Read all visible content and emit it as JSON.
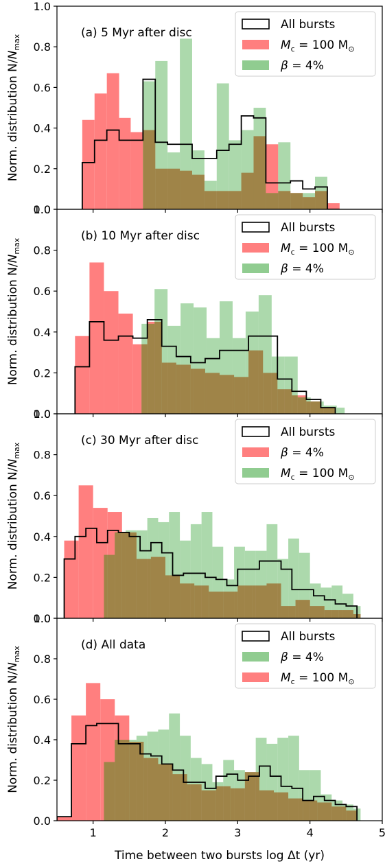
{
  "figure": {
    "ylabel_main": "Norm. distribution N/",
    "ylabel_italic": "N",
    "ylabel_sub": "max",
    "xlabel": "Time between two bursts log Δt (yr)"
  },
  "chart_data": [
    {
      "type": "histogram",
      "title": "(a)  5 Myr after disc",
      "xlim": [
        0.5,
        5.0
      ],
      "ylim": [
        0.0,
        1.0
      ],
      "yticks": [
        "0.0",
        "0.2",
        "0.4",
        "0.6",
        "0.8",
        "1.0"
      ],
      "legend": {
        "placement": "top-right",
        "entries": [
          {
            "kind": "step",
            "text": "All bursts"
          },
          {
            "kind": "red",
            "text_main": "M",
            "text_sub": "c",
            "text_rest": " = 100 M",
            "text_sym": "⊙"
          },
          {
            "kind": "green",
            "text_main": "β",
            "text_rest": " = 4%"
          }
        ]
      },
      "series": [
        {
          "kind": "red",
          "edges": [
            0.85,
            1.02,
            1.19,
            1.36,
            1.52,
            1.69,
            1.86,
            2.03,
            2.2,
            2.37,
            2.54,
            2.71,
            2.88,
            3.05,
            3.22,
            3.39,
            3.56,
            3.73,
            3.9,
            4.07,
            4.24,
            4.41
          ],
          "values": [
            0.44,
            0.57,
            0.67,
            0.45,
            0.38,
            0.39,
            0.2,
            0.2,
            0.19,
            0.17,
            0.09,
            0.09,
            0.09,
            0.18,
            0.36,
            0.32,
            0.09,
            0.08,
            0.06,
            0.09,
            0.03
          ]
        },
        {
          "kind": "green",
          "edges": [
            1.69,
            1.86,
            2.03,
            2.2,
            2.37,
            2.54,
            2.71,
            2.88,
            3.05,
            3.22,
            3.39,
            3.56,
            3.73,
            3.9,
            4.07,
            4.24
          ],
          "values": [
            0.63,
            0.73,
            0.28,
            0.84,
            0.29,
            0.14,
            0.62,
            0.34,
            0.39,
            0.5,
            0.08,
            0.33,
            0.08,
            0.08,
            0.16
          ]
        },
        {
          "kind": "step",
          "edges": [
            0.85,
            1.02,
            1.19,
            1.36,
            1.52,
            1.69,
            1.86,
            2.03,
            2.2,
            2.37,
            2.54,
            2.71,
            2.88,
            3.05,
            3.22,
            3.39,
            3.56,
            3.73,
            3.9,
            4.07,
            4.24,
            4.41
          ],
          "values": [
            0.23,
            0.34,
            0.39,
            0.34,
            0.34,
            0.64,
            0.33,
            0.32,
            0.32,
            0.25,
            0.25,
            0.29,
            0.32,
            0.46,
            0.45,
            0.13,
            0.13,
            0.14,
            0.1,
            0.11,
            0.0
          ]
        }
      ]
    },
    {
      "type": "histogram",
      "title": "(b) 10 Myr after disc",
      "xlim": [
        0.5,
        5.0
      ],
      "ylim": [
        0.0,
        1.0
      ],
      "yticks": [
        "0.0",
        "0.2",
        "0.4",
        "0.6",
        "0.8",
        "1.0"
      ],
      "legend": {
        "placement": "top-right",
        "entries": [
          {
            "kind": "step",
            "text": "All bursts"
          },
          {
            "kind": "red",
            "text_main": "M",
            "text_sub": "c",
            "text_rest": " = 100 M",
            "text_sym": "⊙"
          },
          {
            "kind": "green",
            "text_main": "β",
            "text_rest": " = 4%"
          }
        ]
      },
      "series": [
        {
          "kind": "red",
          "edges": [
            0.75,
            0.95,
            1.15,
            1.35,
            1.55,
            1.75,
            1.95,
            2.15,
            2.35,
            2.55,
            2.75,
            2.95,
            3.15,
            3.35,
            3.55,
            3.75,
            3.95,
            4.15,
            4.35
          ],
          "values": [
            0.38,
            0.74,
            0.6,
            0.49,
            0.34,
            0.45,
            0.25,
            0.24,
            0.22,
            0.2,
            0.19,
            0.18,
            0.31,
            0.2,
            0.12,
            0.09,
            0.06,
            0.03
          ]
        },
        {
          "kind": "green",
          "edges": [
            1.67,
            1.85,
            2.03,
            2.21,
            2.39,
            2.57,
            2.75,
            2.93,
            3.11,
            3.29,
            3.47,
            3.65,
            3.83,
            4.01,
            4.19,
            4.37,
            4.48
          ],
          "values": [
            0.44,
            0.61,
            0.43,
            0.54,
            0.52,
            0.37,
            0.55,
            0.37,
            0.5,
            0.58,
            0.28,
            0.28,
            0.08,
            0.06,
            0.04,
            0.03
          ]
        },
        {
          "kind": "step",
          "edges": [
            0.75,
            0.95,
            1.15,
            1.35,
            1.55,
            1.75,
            1.95,
            2.15,
            2.35,
            2.55,
            2.75,
            2.95,
            3.15,
            3.35,
            3.55,
            3.75,
            3.95,
            4.15,
            4.35
          ],
          "values": [
            0.23,
            0.45,
            0.36,
            0.38,
            0.37,
            0.46,
            0.33,
            0.28,
            0.25,
            0.27,
            0.31,
            0.31,
            0.38,
            0.38,
            0.17,
            0.11,
            0.07,
            0.03
          ]
        }
      ]
    },
    {
      "type": "histogram",
      "title": "(c) 30 Myr after disc",
      "xlim": [
        0.5,
        5.0
      ],
      "ylim": [
        0.0,
        1.0
      ],
      "yticks": [
        "0.0",
        "0.2",
        "0.4",
        "0.6",
        "0.8",
        "1.0"
      ],
      "legend": {
        "placement": "top-right",
        "entries": [
          {
            "kind": "step",
            "text": "All bursts"
          },
          {
            "kind": "red",
            "text_main": "β",
            "text_rest": " = 4%"
          },
          {
            "kind": "green",
            "text_main": "M",
            "text_sub": "c",
            "text_rest": " = 100 M",
            "text_sym": "⊙"
          }
        ]
      },
      "series": [
        {
          "kind": "red",
          "edges": [
            0.6,
            0.8,
            1.0,
            1.2,
            1.4,
            1.6,
            1.8,
            2.0,
            2.2,
            2.4,
            2.6,
            2.8,
            3.0,
            3.2,
            3.4,
            3.6,
            3.8,
            4.0,
            4.2,
            4.4,
            4.6,
            4.7
          ],
          "values": [
            0.38,
            0.65,
            0.54,
            0.52,
            0.42,
            0.29,
            0.3,
            0.21,
            0.17,
            0.16,
            0.13,
            0.13,
            0.16,
            0.16,
            0.17,
            0.06,
            0.09,
            0.06,
            0.04,
            0.04,
            0.02
          ]
        },
        {
          "kind": "green",
          "edges": [
            1.15,
            1.3,
            1.45,
            1.6,
            1.75,
            1.9,
            2.05,
            2.2,
            2.35,
            2.5,
            2.65,
            2.8,
            2.95,
            3.1,
            3.25,
            3.4,
            3.55,
            3.7,
            3.85,
            4.0,
            4.15,
            4.3,
            4.45,
            4.6,
            4.7
          ],
          "values": [
            0.31,
            0.42,
            0.43,
            0.43,
            0.49,
            0.47,
            0.52,
            0.38,
            0.46,
            0.52,
            0.35,
            0.19,
            0.35,
            0.33,
            0.33,
            0.46,
            0.29,
            0.39,
            0.32,
            0.17,
            0.15,
            0.16,
            0.12,
            0.06
          ]
        },
        {
          "kind": "step",
          "edges": [
            0.6,
            0.75,
            0.9,
            1.05,
            1.2,
            1.35,
            1.5,
            1.65,
            1.8,
            1.95,
            2.1,
            2.25,
            2.4,
            2.55,
            2.7,
            2.85,
            3.0,
            3.15,
            3.3,
            3.45,
            3.6,
            3.75,
            3.9,
            4.05,
            4.2,
            4.35,
            4.5,
            4.65
          ],
          "values": [
            0.29,
            0.4,
            0.44,
            0.37,
            0.43,
            0.42,
            0.4,
            0.33,
            0.37,
            0.32,
            0.21,
            0.22,
            0.22,
            0.2,
            0.19,
            0.16,
            0.24,
            0.24,
            0.28,
            0.28,
            0.24,
            0.14,
            0.14,
            0.11,
            0.09,
            0.07,
            0.06
          ]
        }
      ]
    },
    {
      "type": "histogram",
      "title": "(d) All data",
      "xlim": [
        0.5,
        5.0
      ],
      "ylim": [
        0.0,
        1.0
      ],
      "xticks": [
        "1",
        "2",
        "3",
        "4",
        "5"
      ],
      "yticks": [
        "0.0",
        "0.2",
        "0.4",
        "0.6",
        "0.8",
        "1.0"
      ],
      "legend": {
        "placement": "top-right",
        "entries": [
          {
            "kind": "step",
            "text": "All bursts"
          },
          {
            "kind": "green",
            "text_main": "β",
            "text_rest": " = 4%"
          },
          {
            "kind": "red",
            "text_main": "M",
            "text_sub": "c",
            "text_rest": " = 100 M",
            "text_sym": "⊙"
          }
        ]
      },
      "series": [
        {
          "kind": "red",
          "edges": [
            0.5,
            0.7,
            0.9,
            1.1,
            1.3,
            1.5,
            1.7,
            1.9,
            2.1,
            2.3,
            2.5,
            2.7,
            2.9,
            3.1,
            3.3,
            3.5,
            3.7,
            3.9,
            4.1,
            4.3,
            4.5,
            4.65
          ],
          "values": [
            0.02,
            0.52,
            0.68,
            0.6,
            0.52,
            0.39,
            0.31,
            0.28,
            0.23,
            0.18,
            0.15,
            0.17,
            0.16,
            0.24,
            0.15,
            0.14,
            0.11,
            0.1,
            0.09,
            0.07,
            0.05
          ]
        },
        {
          "kind": "green",
          "edges": [
            1.15,
            1.3,
            1.45,
            1.6,
            1.75,
            1.9,
            2.05,
            2.2,
            2.35,
            2.5,
            2.65,
            2.8,
            2.95,
            3.1,
            3.25,
            3.4,
            3.55,
            3.7,
            3.85,
            4.0,
            4.15,
            4.3,
            4.45,
            4.6,
            4.7
          ],
          "values": [
            0.29,
            0.4,
            0.4,
            0.42,
            0.44,
            0.45,
            0.53,
            0.42,
            0.31,
            0.28,
            0.19,
            0.3,
            0.25,
            0.24,
            0.41,
            0.38,
            0.41,
            0.42,
            0.25,
            0.25,
            0.13,
            0.1,
            0.08,
            0.06
          ]
        },
        {
          "kind": "step",
          "edges": [
            0.5,
            0.7,
            0.9,
            1.05,
            1.2,
            1.35,
            1.5,
            1.65,
            1.8,
            1.95,
            2.1,
            2.25,
            2.4,
            2.55,
            2.7,
            2.85,
            3.0,
            3.15,
            3.3,
            3.45,
            3.6,
            3.75,
            3.9,
            4.05,
            4.2,
            4.35,
            4.5,
            4.65
          ],
          "values": [
            0.02,
            0.38,
            0.47,
            0.48,
            0.48,
            0.38,
            0.38,
            0.33,
            0.32,
            0.28,
            0.25,
            0.19,
            0.19,
            0.16,
            0.22,
            0.23,
            0.2,
            0.22,
            0.27,
            0.22,
            0.17,
            0.16,
            0.1,
            0.12,
            0.1,
            0.08,
            0.07
          ]
        }
      ]
    }
  ],
  "colors": {
    "red": "#ff7f7f",
    "green": "#90cc90",
    "step": "#000000"
  }
}
